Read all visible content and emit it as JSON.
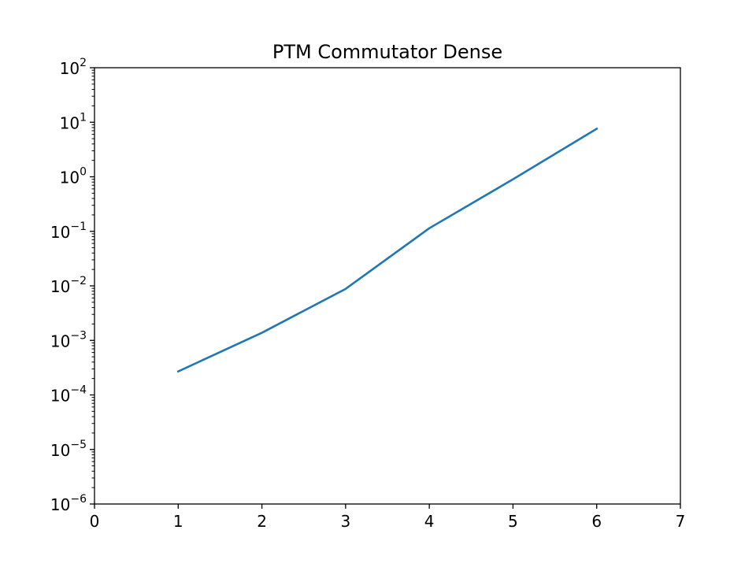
{
  "chart_data": {
    "type": "line",
    "title": "PTM Commutator Dense",
    "xlabel": "",
    "ylabel": "",
    "xlim": [
      0,
      7
    ],
    "ylim": [
      1e-06,
      100
    ],
    "yscale": "log",
    "grid": false,
    "x_ticks": [
      "0",
      "1",
      "2",
      "3",
      "4",
      "5",
      "6",
      "7"
    ],
    "y_ticks": [
      {
        "base": "10",
        "exp": "−6"
      },
      {
        "base": "10",
        "exp": "−5"
      },
      {
        "base": "10",
        "exp": "−4"
      },
      {
        "base": "10",
        "exp": "−3"
      },
      {
        "base": "10",
        "exp": "−2"
      },
      {
        "base": "10",
        "exp": "−1"
      },
      {
        "base": "10",
        "exp": "0"
      },
      {
        "base": "10",
        "exp": "1"
      },
      {
        "base": "10",
        "exp": "2"
      }
    ],
    "series": [
      {
        "color": "#1f77b4",
        "x": [
          1,
          2,
          3,
          4,
          5,
          6
        ],
        "y": [
          0.00027,
          0.00138,
          0.0088,
          0.114,
          0.9,
          7.6
        ]
      }
    ]
  }
}
